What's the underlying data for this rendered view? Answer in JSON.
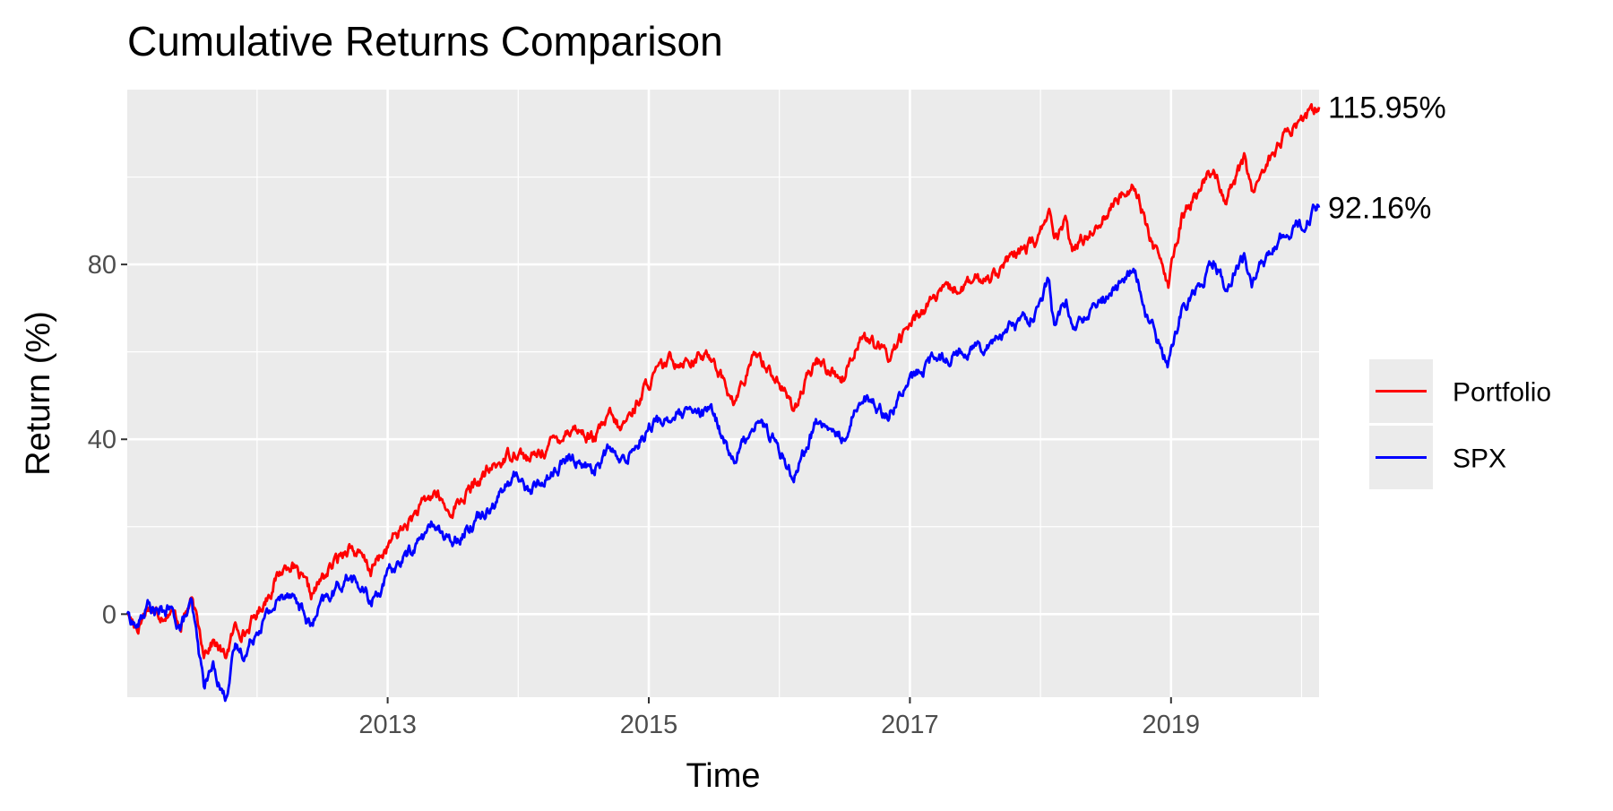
{
  "chart_data": {
    "type": "line",
    "title": "Cumulative Returns Comparison",
    "xlabel": "Time",
    "ylabel": "Return (%)",
    "x_ticks": [
      "2013",
      "2015",
      "2017",
      "2019"
    ],
    "y_ticks": [
      0,
      40,
      80
    ],
    "xlim": [
      "2011-01-03",
      "2020-02-19"
    ],
    "ylim": [
      -19,
      120
    ],
    "grid": true,
    "legend_position": "right",
    "end_labels": [
      "115.95%",
      "92.16%"
    ],
    "series": [
      {
        "name": "Portfolio",
        "color": "#ff0000",
        "points": [
          [
            "2011-01-03",
            0
          ],
          [
            "2011-02-01",
            -3
          ],
          [
            "2011-03-01",
            2
          ],
          [
            "2011-04-01",
            0
          ],
          [
            "2011-05-01",
            1
          ],
          [
            "2011-06-01",
            -2
          ],
          [
            "2011-07-01",
            3
          ],
          [
            "2011-08-05",
            -8
          ],
          [
            "2011-09-01",
            -6
          ],
          [
            "2011-10-03",
            -10
          ],
          [
            "2011-11-01",
            -3
          ],
          [
            "2011-12-01",
            -4
          ],
          [
            "2012-01-01",
            0
          ],
          [
            "2012-03-01",
            9
          ],
          [
            "2012-04-01",
            12
          ],
          [
            "2012-06-01",
            4
          ],
          [
            "2012-07-01",
            8
          ],
          [
            "2012-09-15",
            16
          ],
          [
            "2012-11-15",
            10
          ],
          [
            "2013-01-15",
            17
          ],
          [
            "2013-05-15",
            28
          ],
          [
            "2013-06-20",
            23
          ],
          [
            "2013-10-01",
            32
          ],
          [
            "2013-12-31",
            38
          ],
          [
            "2014-02-01",
            35
          ],
          [
            "2014-06-01",
            43
          ],
          [
            "2014-08-01",
            40
          ],
          [
            "2014-09-15",
            45
          ],
          [
            "2014-10-15",
            42
          ],
          [
            "2014-12-31",
            53
          ],
          [
            "2015-03-01",
            58
          ],
          [
            "2015-07-01",
            59
          ],
          [
            "2015-08-25",
            48
          ],
          [
            "2015-11-01",
            60
          ],
          [
            "2015-12-15",
            55
          ],
          [
            "2016-02-11",
            47
          ],
          [
            "2016-04-15",
            58
          ],
          [
            "2016-06-27",
            54
          ],
          [
            "2016-08-15",
            64
          ],
          [
            "2016-11-01",
            59
          ],
          [
            "2016-12-31",
            66
          ],
          [
            "2017-03-01",
            72
          ],
          [
            "2017-08-01",
            77
          ],
          [
            "2017-12-31",
            86
          ],
          [
            "2018-01-26",
            94
          ],
          [
            "2018-02-08",
            84
          ],
          [
            "2018-03-15",
            90
          ],
          [
            "2018-04-01",
            83
          ],
          [
            "2018-09-20",
            99
          ],
          [
            "2018-10-29",
            88
          ],
          [
            "2018-12-24",
            75
          ],
          [
            "2019-02-01",
            91
          ],
          [
            "2019-04-30",
            102
          ],
          [
            "2019-06-03",
            95
          ],
          [
            "2019-07-26",
            104
          ],
          [
            "2019-08-15",
            97
          ],
          [
            "2019-11-01",
            108
          ],
          [
            "2019-12-31",
            113
          ],
          [
            "2020-02-19",
            116
          ]
        ]
      },
      {
        "name": "SPX",
        "color": "#0000ff",
        "points": [
          [
            "2011-01-03",
            0
          ],
          [
            "2011-02-01",
            -3
          ],
          [
            "2011-03-01",
            2
          ],
          [
            "2011-04-01",
            0
          ],
          [
            "2011-05-01",
            1
          ],
          [
            "2011-06-01",
            -3
          ],
          [
            "2011-07-01",
            2
          ],
          [
            "2011-08-05",
            -16
          ],
          [
            "2011-09-01",
            -12
          ],
          [
            "2011-10-03",
            -19
          ],
          [
            "2011-11-01",
            -8
          ],
          [
            "2011-12-01",
            -9
          ],
          [
            "2012-01-01",
            -3
          ],
          [
            "2012-03-01",
            3
          ],
          [
            "2012-04-01",
            6
          ],
          [
            "2012-06-01",
            -3
          ],
          [
            "2012-07-01",
            2
          ],
          [
            "2012-09-15",
            9
          ],
          [
            "2012-11-15",
            3
          ],
          [
            "2013-01-15",
            10
          ],
          [
            "2013-05-15",
            21
          ],
          [
            "2013-06-20",
            16
          ],
          [
            "2013-10-01",
            24
          ],
          [
            "2013-12-31",
            32
          ],
          [
            "2014-02-01",
            28
          ],
          [
            "2014-06-01",
            36
          ],
          [
            "2014-08-01",
            33
          ],
          [
            "2014-09-15",
            38
          ],
          [
            "2014-10-15",
            34
          ],
          [
            "2014-12-31",
            43
          ],
          [
            "2015-03-01",
            45
          ],
          [
            "2015-07-01",
            46
          ],
          [
            "2015-08-25",
            35
          ],
          [
            "2015-11-01",
            45
          ],
          [
            "2015-12-15",
            40
          ],
          [
            "2016-02-11",
            32
          ],
          [
            "2016-04-15",
            44
          ],
          [
            "2016-06-27",
            40
          ],
          [
            "2016-08-15",
            50
          ],
          [
            "2016-11-01",
            46
          ],
          [
            "2016-12-31",
            53
          ],
          [
            "2017-03-01",
            58
          ],
          [
            "2017-08-01",
            62
          ],
          [
            "2017-12-31",
            70
          ],
          [
            "2018-01-26",
            77
          ],
          [
            "2018-02-08",
            66
          ],
          [
            "2018-03-15",
            71
          ],
          [
            "2018-04-01",
            65
          ],
          [
            "2018-09-20",
            79
          ],
          [
            "2018-10-29",
            67
          ],
          [
            "2018-12-24",
            57
          ],
          [
            "2019-02-01",
            70
          ],
          [
            "2019-04-30",
            81
          ],
          [
            "2019-06-03",
            75
          ],
          [
            "2019-07-26",
            82
          ],
          [
            "2019-08-15",
            76
          ],
          [
            "2019-11-01",
            86
          ],
          [
            "2019-12-31",
            89
          ],
          [
            "2020-02-19",
            93
          ]
        ]
      }
    ]
  }
}
